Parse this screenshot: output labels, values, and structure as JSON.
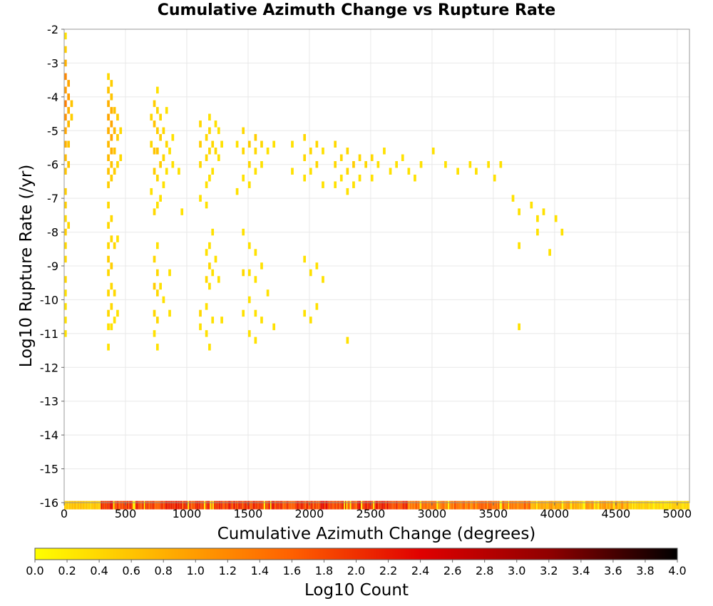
{
  "chart_data": {
    "type": "heatmap",
    "title": "Cumulative Azimuth Change vs Rupture Rate",
    "xlabel": "Cumulative Azimuth Change (degrees)",
    "ylabel": "Log10 Rupture Rate (/yr)",
    "xlim": [
      0,
      5100
    ],
    "ylim": [
      -16,
      -2
    ],
    "x_ticks": [
      0,
      500,
      1000,
      1500,
      2000,
      2500,
      3000,
      3500,
      4000,
      4500,
      5000
    ],
    "y_ticks": [
      -2,
      -3,
      -4,
      -5,
      -6,
      -7,
      -8,
      -9,
      -10,
      -11,
      -12,
      -13,
      -14,
      -15,
      -16
    ],
    "grid": true,
    "colorbar": {
      "label": "Log10 Count",
      "range": [
        0.0,
        4.0
      ],
      "ticks": [
        0.0,
        0.2,
        0.4,
        0.6,
        0.8,
        1.0,
        1.2,
        1.4,
        1.6,
        1.8,
        2.0,
        2.2,
        2.4,
        2.6,
        2.8,
        3.0,
        3.2,
        3.4,
        3.6,
        3.8,
        4.0
      ],
      "colors": [
        "#ffff00",
        "#ffb000",
        "#ff6000",
        "#e00000",
        "#900000",
        "#000000"
      ]
    },
    "cell_size": {
      "x": 25,
      "y": 0.2
    },
    "cells": [
      [
        0,
        -2.2,
        0.3
      ],
      [
        0,
        -2.6,
        0.5
      ],
      [
        0,
        -3.0,
        0.8
      ],
      [
        0,
        -3.4,
        1.2
      ],
      [
        0,
        -3.8,
        1.0
      ],
      [
        0,
        -4.2,
        1.3
      ],
      [
        0,
        -4.6,
        1.1
      ],
      [
        0,
        -5.0,
        0.9
      ],
      [
        0,
        -5.4,
        0.8
      ],
      [
        0,
        -5.8,
        0.7
      ],
      [
        0,
        -6.2,
        0.6
      ],
      [
        0,
        -6.8,
        0.5
      ],
      [
        0,
        -7.2,
        0.5
      ],
      [
        0,
        -7.6,
        0.4
      ],
      [
        0,
        -8.0,
        0.5
      ],
      [
        0,
        -8.4,
        0.4
      ],
      [
        0,
        -8.8,
        0.4
      ],
      [
        0,
        -9.4,
        0.4
      ],
      [
        0,
        -9.8,
        0.3
      ],
      [
        0,
        -10.2,
        0.3
      ],
      [
        0,
        -10.6,
        0.3
      ],
      [
        0,
        -11.0,
        0.3
      ],
      [
        25,
        -3.6,
        0.9
      ],
      [
        25,
        -4.0,
        1.0
      ],
      [
        25,
        -4.4,
        0.8
      ],
      [
        25,
        -4.8,
        0.7
      ],
      [
        25,
        -5.4,
        0.6
      ],
      [
        25,
        -6.0,
        0.6
      ],
      [
        25,
        -7.8,
        0.4
      ],
      [
        50,
        -4.2,
        0.6
      ],
      [
        50,
        -4.6,
        0.5
      ],
      [
        350,
        -3.4,
        0.4
      ],
      [
        350,
        -3.8,
        0.6
      ],
      [
        350,
        -4.2,
        0.8
      ],
      [
        350,
        -4.6,
        0.9
      ],
      [
        350,
        -5.0,
        0.8
      ],
      [
        350,
        -5.4,
        0.7
      ],
      [
        350,
        -5.8,
        0.7
      ],
      [
        350,
        -6.2,
        0.6
      ],
      [
        350,
        -6.6,
        0.5
      ],
      [
        350,
        -7.2,
        0.4
      ],
      [
        350,
        -7.8,
        0.4
      ],
      [
        350,
        -8.4,
        0.4
      ],
      [
        350,
        -8.8,
        0.5
      ],
      [
        350,
        -9.2,
        0.4
      ],
      [
        350,
        -9.8,
        0.4
      ],
      [
        350,
        -10.4,
        0.4
      ],
      [
        350,
        -10.8,
        0.3
      ],
      [
        350,
        -11.4,
        0.3
      ],
      [
        375,
        -3.6,
        0.5
      ],
      [
        375,
        -4.0,
        0.6
      ],
      [
        375,
        -4.4,
        0.8
      ],
      [
        375,
        -4.8,
        0.9
      ],
      [
        375,
        -5.2,
        0.9
      ],
      [
        375,
        -5.6,
        0.8
      ],
      [
        375,
        -6.0,
        0.6
      ],
      [
        375,
        -6.4,
        0.5
      ],
      [
        375,
        -7.6,
        0.4
      ],
      [
        375,
        -8.2,
        0.4
      ],
      [
        375,
        -9.0,
        0.5
      ],
      [
        375,
        -9.6,
        0.4
      ],
      [
        375,
        -10.2,
        0.4
      ],
      [
        375,
        -10.8,
        0.3
      ],
      [
        400,
        -4.4,
        0.6
      ],
      [
        400,
        -5.0,
        0.7
      ],
      [
        400,
        -5.6,
        0.6
      ],
      [
        400,
        -6.2,
        0.5
      ],
      [
        400,
        -8.4,
        0.4
      ],
      [
        400,
        -9.8,
        0.4
      ],
      [
        400,
        -10.6,
        0.3
      ],
      [
        425,
        -4.6,
        0.5
      ],
      [
        425,
        -5.2,
        0.5
      ],
      [
        425,
        -6.0,
        0.4
      ],
      [
        425,
        -8.2,
        0.3
      ],
      [
        425,
        -10.4,
        0.3
      ],
      [
        450,
        -5.0,
        0.4
      ],
      [
        450,
        -5.8,
        0.4
      ],
      [
        700,
        -4.6,
        0.4
      ],
      [
        700,
        -5.4,
        0.4
      ],
      [
        700,
        -6.8,
        0.3
      ],
      [
        725,
        -4.2,
        0.5
      ],
      [
        725,
        -4.8,
        0.6
      ],
      [
        725,
        -5.6,
        0.6
      ],
      [
        725,
        -6.2,
        0.5
      ],
      [
        725,
        -7.4,
        0.4
      ],
      [
        725,
        -8.8,
        0.4
      ],
      [
        725,
        -9.6,
        0.5
      ],
      [
        725,
        -10.4,
        0.4
      ],
      [
        725,
        -11.0,
        0.3
      ],
      [
        750,
        -3.8,
        0.3
      ],
      [
        750,
        -4.4,
        0.4
      ],
      [
        750,
        -5.0,
        0.5
      ],
      [
        750,
        -5.6,
        0.6
      ],
      [
        750,
        -6.4,
        0.4
      ],
      [
        750,
        -7.2,
        0.3
      ],
      [
        750,
        -8.4,
        0.3
      ],
      [
        750,
        -9.2,
        0.4
      ],
      [
        750,
        -9.8,
        0.4
      ],
      [
        750,
        -10.6,
        0.4
      ],
      [
        750,
        -11.4,
        0.3
      ],
      [
        775,
        -4.6,
        0.4
      ],
      [
        775,
        -5.2,
        0.5
      ],
      [
        775,
        -6.0,
        0.5
      ],
      [
        775,
        -7.0,
        0.3
      ],
      [
        775,
        -9.6,
        0.3
      ],
      [
        800,
        -5.0,
        0.4
      ],
      [
        800,
        -5.8,
        0.4
      ],
      [
        800,
        -6.6,
        0.3
      ],
      [
        800,
        -10.0,
        0.3
      ],
      [
        825,
        -4.4,
        0.3
      ],
      [
        825,
        -5.4,
        0.4
      ],
      [
        825,
        -6.2,
        0.3
      ],
      [
        850,
        -5.6,
        0.3
      ],
      [
        850,
        -9.2,
        0.3
      ],
      [
        850,
        -10.4,
        0.3
      ],
      [
        875,
        -5.2,
        0.3
      ],
      [
        875,
        -6.0,
        0.3
      ],
      [
        925,
        -6.2,
        0.3
      ],
      [
        950,
        -7.4,
        0.3
      ],
      [
        1100,
        -4.8,
        0.4
      ],
      [
        1100,
        -5.4,
        0.5
      ],
      [
        1100,
        -6.0,
        0.4
      ],
      [
        1100,
        -7.0,
        0.3
      ],
      [
        1100,
        -10.4,
        0.4
      ],
      [
        1100,
        -10.8,
        0.3
      ],
      [
        1150,
        -5.2,
        0.4
      ],
      [
        1150,
        -5.8,
        0.4
      ],
      [
        1150,
        -6.6,
        0.3
      ],
      [
        1150,
        -7.2,
        0.3
      ],
      [
        1150,
        -8.6,
        0.3
      ],
      [
        1150,
        -9.4,
        0.4
      ],
      [
        1150,
        -10.2,
        0.3
      ],
      [
        1150,
        -11.0,
        0.3
      ],
      [
        1175,
        -4.6,
        0.3
      ],
      [
        1175,
        -5.0,
        0.4
      ],
      [
        1175,
        -5.6,
        0.4
      ],
      [
        1175,
        -6.4,
        0.3
      ],
      [
        1175,
        -8.4,
        0.3
      ],
      [
        1175,
        -9.0,
        0.4
      ],
      [
        1175,
        -9.6,
        0.3
      ],
      [
        1175,
        -11.4,
        0.3
      ],
      [
        1200,
        -5.4,
        0.4
      ],
      [
        1200,
        -6.2,
        0.3
      ],
      [
        1200,
        -8.0,
        0.3
      ],
      [
        1200,
        -9.2,
        0.3
      ],
      [
        1200,
        -10.6,
        0.3
      ],
      [
        1225,
        -4.8,
        0.3
      ],
      [
        1225,
        -5.6,
        0.4
      ],
      [
        1225,
        -8.8,
        0.3
      ],
      [
        1250,
        -5.0,
        0.3
      ],
      [
        1250,
        -5.8,
        0.3
      ],
      [
        1250,
        -9.4,
        0.3
      ],
      [
        1275,
        -5.4,
        0.3
      ],
      [
        1275,
        -10.6,
        0.3
      ],
      [
        1400,
        -5.4,
        0.3
      ],
      [
        1400,
        -6.8,
        0.3
      ],
      [
        1450,
        -5.0,
        0.4
      ],
      [
        1450,
        -5.6,
        0.4
      ],
      [
        1450,
        -6.4,
        0.3
      ],
      [
        1450,
        -8.0,
        0.3
      ],
      [
        1450,
        -9.2,
        0.4
      ],
      [
        1450,
        -10.4,
        0.3
      ],
      [
        1500,
        -5.4,
        0.5
      ],
      [
        1500,
        -6.0,
        0.4
      ],
      [
        1500,
        -6.6,
        0.3
      ],
      [
        1500,
        -8.4,
        0.3
      ],
      [
        1500,
        -9.2,
        0.3
      ],
      [
        1500,
        -10.0,
        0.3
      ],
      [
        1500,
        -11.0,
        0.3
      ],
      [
        1550,
        -5.2,
        0.5
      ],
      [
        1550,
        -5.6,
        0.4
      ],
      [
        1550,
        -6.2,
        0.3
      ],
      [
        1550,
        -8.6,
        0.3
      ],
      [
        1550,
        -9.4,
        0.3
      ],
      [
        1550,
        -10.4,
        0.3
      ],
      [
        1550,
        -11.2,
        0.3
      ],
      [
        1600,
        -5.4,
        0.4
      ],
      [
        1600,
        -6.0,
        0.3
      ],
      [
        1600,
        -9.0,
        0.3
      ],
      [
        1600,
        -10.6,
        0.3
      ],
      [
        1650,
        -5.6,
        0.3
      ],
      [
        1650,
        -9.8,
        0.3
      ],
      [
        1700,
        -5.4,
        0.3
      ],
      [
        1700,
        -10.8,
        0.3
      ],
      [
        1850,
        -5.4,
        0.3
      ],
      [
        1850,
        -6.2,
        0.3
      ],
      [
        1950,
        -5.2,
        0.4
      ],
      [
        1950,
        -5.8,
        0.4
      ],
      [
        1950,
        -6.4,
        0.3
      ],
      [
        1950,
        -8.8,
        0.3
      ],
      [
        1950,
        -10.4,
        0.3
      ],
      [
        2000,
        -5.6,
        0.4
      ],
      [
        2000,
        -6.2,
        0.3
      ],
      [
        2000,
        -9.2,
        0.3
      ],
      [
        2000,
        -10.6,
        0.3
      ],
      [
        2050,
        -5.4,
        0.4
      ],
      [
        2050,
        -6.0,
        0.4
      ],
      [
        2050,
        -9.0,
        0.3
      ],
      [
        2050,
        -10.2,
        0.3
      ],
      [
        2100,
        -5.6,
        0.3
      ],
      [
        2100,
        -6.6,
        0.3
      ],
      [
        2100,
        -9.4,
        0.3
      ],
      [
        2200,
        -5.4,
        0.4
      ],
      [
        2200,
        -6.0,
        0.4
      ],
      [
        2200,
        -6.6,
        0.3
      ],
      [
        2250,
        -5.8,
        0.4
      ],
      [
        2250,
        -6.4,
        0.3
      ],
      [
        2300,
        -5.6,
        0.4
      ],
      [
        2300,
        -6.2,
        0.4
      ],
      [
        2300,
        -6.8,
        0.3
      ],
      [
        2300,
        -11.2,
        0.3
      ],
      [
        2350,
        -6.0,
        0.5
      ],
      [
        2350,
        -6.6,
        0.3
      ],
      [
        2400,
        -5.8,
        0.4
      ],
      [
        2400,
        -6.4,
        0.3
      ],
      [
        2450,
        -6.0,
        0.4
      ],
      [
        2500,
        -5.8,
        0.4
      ],
      [
        2500,
        -6.4,
        0.3
      ],
      [
        2550,
        -6.0,
        0.3
      ],
      [
        2600,
        -5.6,
        0.3
      ],
      [
        2650,
        -6.2,
        0.3
      ],
      [
        2700,
        -6.0,
        0.3
      ],
      [
        2750,
        -5.8,
        0.3
      ],
      [
        2800,
        -6.2,
        0.3
      ],
      [
        2850,
        -6.4,
        0.3
      ],
      [
        2900,
        -6.0,
        0.3
      ],
      [
        3000,
        -5.6,
        0.3
      ],
      [
        3100,
        -6.0,
        0.3
      ],
      [
        3200,
        -6.2,
        0.3
      ],
      [
        3300,
        -6.0,
        0.3
      ],
      [
        3350,
        -6.2,
        0.3
      ],
      [
        3450,
        -6.0,
        0.3
      ],
      [
        3500,
        -6.4,
        0.3
      ],
      [
        3550,
        -6.0,
        0.3
      ],
      [
        3650,
        -7.0,
        0.3
      ],
      [
        3700,
        -7.4,
        0.3
      ],
      [
        3700,
        -8.4,
        0.3
      ],
      [
        3800,
        -7.2,
        0.3
      ],
      [
        3850,
        -7.6,
        0.3
      ],
      [
        3850,
        -8.0,
        0.3
      ],
      [
        3900,
        -7.4,
        0.3
      ],
      [
        3950,
        -8.6,
        0.3
      ],
      [
        4000,
        -7.6,
        0.3
      ],
      [
        4050,
        -8.0,
        0.3
      ],
      [
        3700,
        -10.8,
        0.3
      ]
    ]
  }
}
